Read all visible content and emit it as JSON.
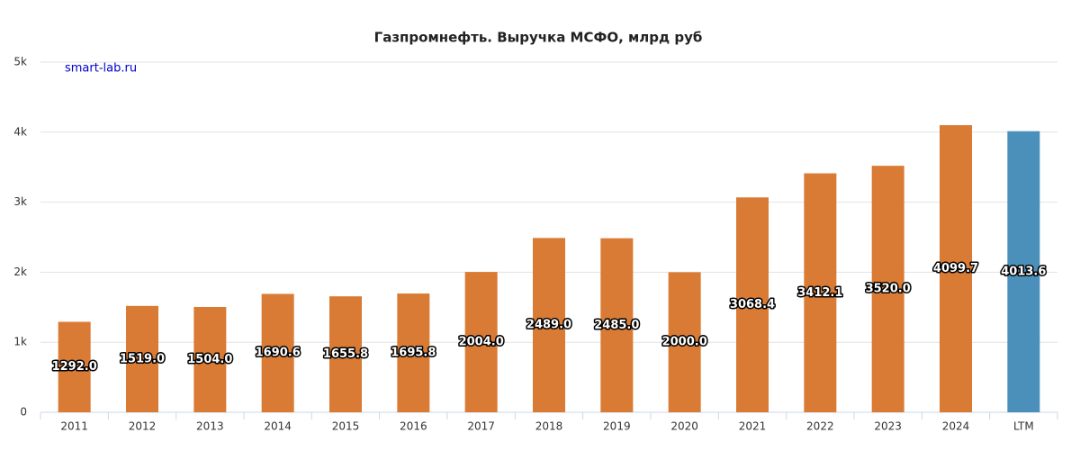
{
  "chart_data": {
    "type": "bar",
    "title": "Газпромнефть. Выручка МСФО, млрд руб",
    "watermark": "smart-lab.ru",
    "categories": [
      "2011",
      "2012",
      "2013",
      "2014",
      "2015",
      "2016",
      "2017",
      "2018",
      "2019",
      "2020",
      "2021",
      "2022",
      "2023",
      "2024",
      "LTM"
    ],
    "values": [
      1292,
      1519,
      1504,
      1690.6,
      1655.8,
      1695.8,
      2004,
      2489,
      2485,
      2000,
      3068.4,
      3412.1,
      3520,
      4099.7,
      4013.6
    ],
    "value_labels": [
      "1292.0",
      "1519.0",
      "1504.0",
      "1690.6",
      "1655.8",
      "1695.8",
      "2004.0",
      "2489.0",
      "2485.0",
      "2000.0",
      "3068.4",
      "3412.1",
      "3520.0",
      "4099.7",
      "4013.6"
    ],
    "colors": [
      "#d97b35",
      "#d97b35",
      "#d97b35",
      "#d97b35",
      "#d97b35",
      "#d97b35",
      "#d97b35",
      "#d97b35",
      "#d97b35",
      "#d97b35",
      "#d97b35",
      "#d97b35",
      "#d97b35",
      "#d97b35",
      "#4a90bb"
    ],
    "ylim": [
      0,
      5000
    ],
    "yticks": [
      0,
      {
        "value": 1000,
        "label": "1k"
      },
      {
        "value": 2000,
        "label": "2k"
      },
      {
        "value": 3000,
        "label": "3k"
      },
      {
        "value": 4000,
        "label": "4k"
      },
      {
        "value": 5000,
        "label": "5k"
      }
    ],
    "grid": true
  }
}
